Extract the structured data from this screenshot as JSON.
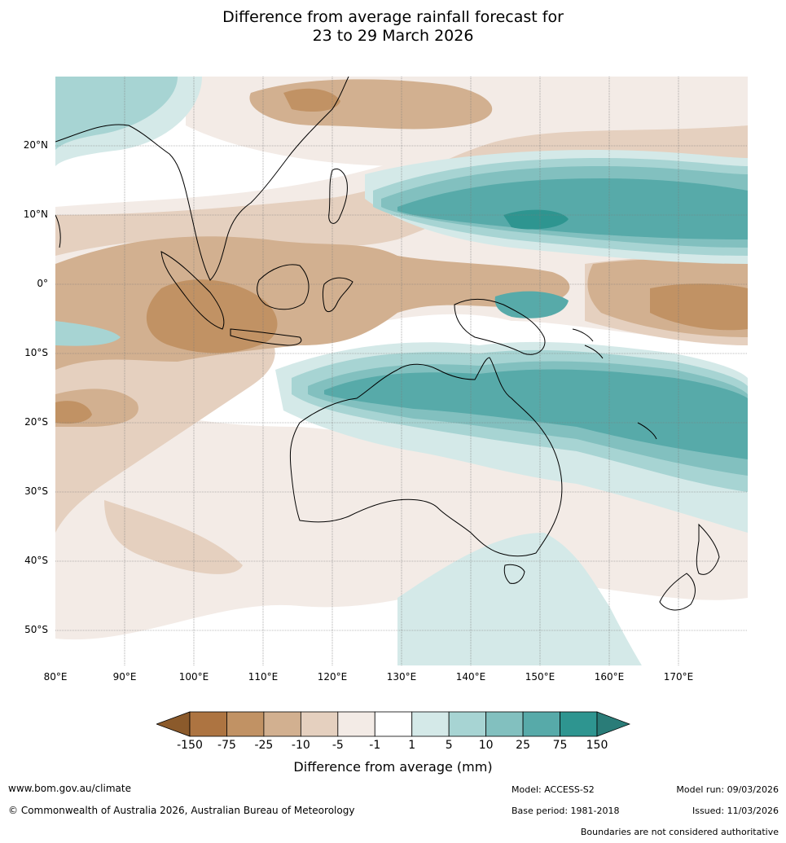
{
  "title": {
    "line1": "Difference from average rainfall forecast for",
    "line2": "23 to 29 March 2026"
  },
  "map": {
    "lat_labels": [
      "20°N",
      "10°N",
      "0°",
      "10°S",
      "20°S",
      "30°S",
      "40°S",
      "50°S"
    ],
    "lon_labels": [
      "80°E",
      "90°E",
      "100°E",
      "110°E",
      "120°E",
      "130°E",
      "140°E",
      "150°E",
      "160°E",
      "170°E"
    ],
    "extent": {
      "lon": [
        80,
        180
      ],
      "lat": [
        -55,
        30
      ]
    }
  },
  "legend": {
    "ticks": [
      "-150",
      "-75",
      "-25",
      "-10",
      "-5",
      "-1",
      "1",
      "5",
      "10",
      "25",
      "75",
      "150"
    ],
    "colors": [
      "#ad7441",
      "#c19264",
      "#d2b090",
      "#e5d0bf",
      "#f3ebe6",
      "#ffffff",
      "#d4e9e8",
      "#a7d4d3",
      "#82c0bf",
      "#57aaa9",
      "#2e9590"
    ],
    "extend_low_color": "#8b5a2b",
    "extend_high_color": "#2a7c78",
    "title": "Difference from average (mm)"
  },
  "footer": {
    "website": "www.bom.gov.au/climate",
    "copyright": "© Commonwealth of Australia 2026, Australian Bureau of Meteorology",
    "model": "Model: ACCESS-S2",
    "base_period": "Base period: 1981-2018",
    "model_run": "Model run: 09/03/2026",
    "issued": "Issued: 11/03/2026",
    "disclaimer": "Boundaries are not considered authoritative"
  }
}
